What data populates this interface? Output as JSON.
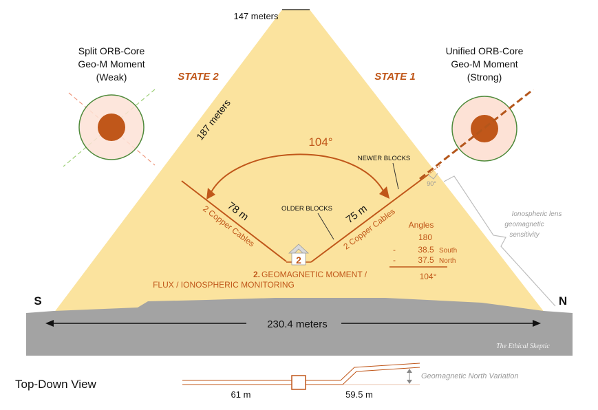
{
  "top_label": "147 meters",
  "left_core": {
    "title1": "Split ORB-Core",
    "title2": "Geo-M Moment",
    "title3": "(Weak)"
  },
  "right_core": {
    "title1": "Unified ORB-Core",
    "title2": "Geo-M Moment",
    "title3": "(Strong)"
  },
  "state_left": "STATE 2",
  "state_right": "STATE 1",
  "slant_label": "187 meters",
  "angle_label": "104°",
  "newer_blocks": "NEWER BLOCKS",
  "older_blocks": "OLDER BLOCKS",
  "right_angle": "90°",
  "left_shaft": {
    "length": "78 m",
    "cables": "2 Copper Cables"
  },
  "right_shaft": {
    "length": "75 m",
    "cables": "2 Copper Cables"
  },
  "chamber_number": "2",
  "caption": {
    "line1_num": "2.",
    "line1": "GEOMAGNETIC MOMENT /",
    "line2": "FLUX / IONOSPHERIC MONITORING"
  },
  "angles": {
    "title": "Angles",
    "v1": "180",
    "op2": "-",
    "v2": "38.5",
    "l2": "South",
    "op3": "-",
    "v3": "37.5",
    "l3": "North",
    "result": "104°"
  },
  "lens_note": {
    "line1": "Ionospheric lens",
    "line2": "geomagnetic",
    "line3": "sensitivity"
  },
  "compass": {
    "left": "S",
    "right": "N"
  },
  "base_width": "230.4 meters",
  "watermark": "The Ethical Skeptic",
  "topdown": {
    "title": "Top-Down View",
    "left_len": "61 m",
    "right_len": "59.5 m",
    "variation": "Geomagnetic North Variation"
  },
  "colors": {
    "pyramid": "#fbe39e",
    "accent": "#c0571a",
    "ground": "#a3a3a3",
    "core_outer": "#fde2d6",
    "core_ring": "#4e8a3a"
  }
}
